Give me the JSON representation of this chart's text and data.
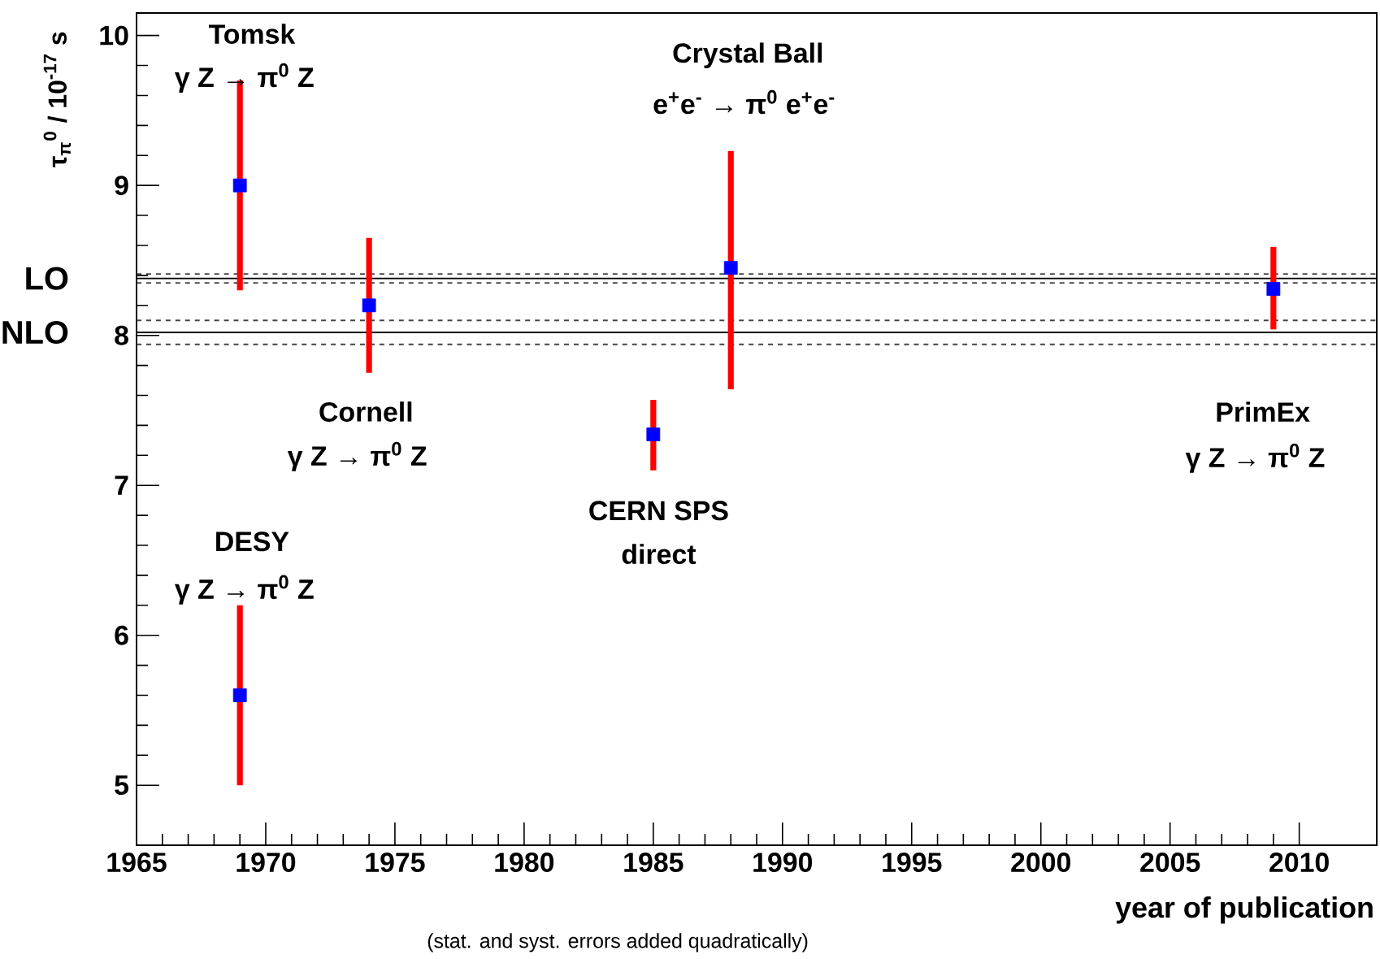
{
  "chart_data": {
    "type": "scatter",
    "xlabel": "year of publication",
    "ylabel": "τ$_{π}$$^{0}$ / 10$^{-17}$ s",
    "x": [
      1969,
      1969,
      1974,
      1985,
      1988,
      2009
    ],
    "series": [
      {
        "color": "#0000ff",
        "values": [
          9.0,
          5.6,
          8.2,
          7.34,
          8.45,
          8.31
        ],
        "errors": [
          [
            8.3,
            9.7
          ],
          [
            5.0,
            6.2
          ],
          [
            7.75,
            8.65
          ],
          [
            7.1,
            7.57
          ],
          [
            7.64,
            9.23
          ],
          [
            8.04,
            8.59
          ]
        ]
      }
    ],
    "marker": "square",
    "xlim": [
      1965,
      2013
    ],
    "ylim": [
      4.6,
      10.15
    ],
    "xticks": [
      1965,
      1970,
      1975,
      1980,
      1985,
      1990,
      1995,
      2000,
      2005,
      2010
    ],
    "yticks": [
      5,
      6,
      7,
      8,
      9,
      10
    ],
    "ref_lines": [
      {
        "axis": "y",
        "value": 8.38,
        "label": "LO",
        "color": "#000000",
        "line_style": "solid"
      },
      {
        "axis": "y",
        "value": 8.41,
        "color": "#444444",
        "line_style": "dashed"
      },
      {
        "axis": "y",
        "value": 8.35,
        "color": "#444444",
        "line_style": "dashed"
      },
      {
        "axis": "y",
        "value": 8.02,
        "label": "NLO",
        "color": "#000000",
        "line_style": "solid"
      },
      {
        "axis": "y",
        "value": 8.1,
        "color": "#444444",
        "line_style": "dashed"
      },
      {
        "axis": "y",
        "value": 7.94,
        "color": "#444444",
        "line_style": "dashed"
      }
    ],
    "annotations": [
      "Tomsk",
      "γ Z → π$^{0}$ Z",
      "DESY",
      "γ Z → π$^{0}$ Z",
      "Cornell",
      "γ Z → π$^{0}$ Z",
      "CERN SPS",
      "direct",
      "Crystal Ball",
      "e$^{+}$e$^{-}$ → π$^{0}$ e$^{+}$e$^{-}$",
      "PrimEx",
      "γ Z → π$^{0}$ Z",
      "(stat. and syst. errors added quadratically)"
    ]
  }
}
